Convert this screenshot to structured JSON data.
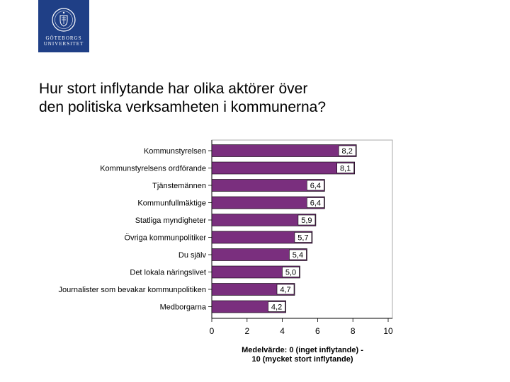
{
  "logo": {
    "line1": "GÖTEBORGS",
    "line2": "UNIVERSITET"
  },
  "slide": {
    "title_line1": "Hur stort inflytande har olika aktörer över",
    "title_line2": "den politiska verksamheten i kommunerna?"
  },
  "colors": {
    "bar": "#7a2f7e",
    "logo_bg": "#1f3f86"
  },
  "chart_data": {
    "type": "bar",
    "orientation": "horizontal",
    "title": "",
    "categories": [
      "Kommunstyrelsen",
      "Kommunstyrelsens ordförande",
      "Tjänstemännen",
      "Kommunfullmäktige",
      "Statliga myndigheter",
      "Övriga kommunpolitiker",
      "Du själv",
      "Det lokala näringslivet",
      "Journalister som bevakar kommunpolitiken",
      "Medborgarna"
    ],
    "values": [
      8.2,
      8.1,
      6.4,
      6.4,
      5.9,
      5.7,
      5.4,
      5.0,
      4.7,
      4.2
    ],
    "value_labels": [
      "8,2",
      "8,1",
      "6,4",
      "6,4",
      "5,9",
      "5,7",
      "5,4",
      "5,0",
      "4,7",
      "4,2"
    ],
    "xlim": [
      0,
      10
    ],
    "xticks": [
      "0",
      "2",
      "4",
      "6",
      "8",
      "10"
    ],
    "xlabel_line1": "Medelvärde: 0 (inget inflytande) -",
    "xlabel_line2": "10 (mycket stort inflytande)",
    "ylabel": "",
    "grid": false
  }
}
